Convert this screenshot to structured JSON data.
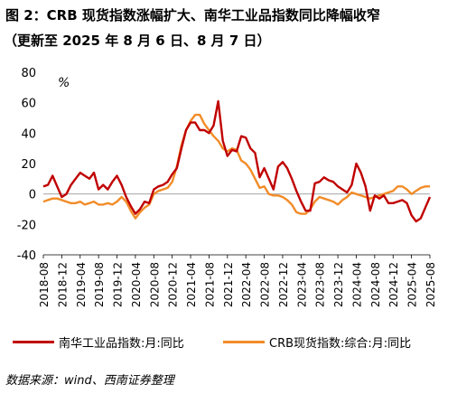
{
  "header": {
    "title": "图 2：CRB 现货指数涨幅扩大、南华工业品指数同比降幅收窄",
    "subtitle": "（更新至 2025 年 8 月 6 日、8 月 7 日）"
  },
  "footer": {
    "source": "数据来源：wind、西南证券整理"
  },
  "colors": {
    "nanhua": "#c00000",
    "crb": "#f28c28",
    "zero_line": "#999999"
  },
  "chart_data": {
    "type": "line",
    "unit_label": "%",
    "ylim": [
      -40,
      80
    ],
    "yticks": [
      80,
      60,
      40,
      20,
      0,
      -20,
      -40
    ],
    "xlim": [
      "2018-08",
      "2025-08"
    ],
    "xtick_labels": [
      "2018-08",
      "2018-12",
      "2019-04",
      "2019-08",
      "2019-12",
      "2020-04",
      "2020-08",
      "2020-12",
      "2021-04",
      "2021-08",
      "2021-12",
      "2022-04",
      "2022-08",
      "2022-12",
      "2023-04",
      "2023-08",
      "2023-12",
      "2024-04",
      "2024-08",
      "2024-12",
      "2025-04",
      "2025-08"
    ],
    "grid": false,
    "legend_position": "bottom",
    "series": [
      {
        "name": "南华工业品指数:月:同比",
        "color_key": "nanhua",
        "points": [
          [
            "2018-08",
            5
          ],
          [
            "2018-09",
            6
          ],
          [
            "2018-10",
            12
          ],
          [
            "2018-11",
            5
          ],
          [
            "2018-12",
            -2
          ],
          [
            "2019-01",
            0
          ],
          [
            "2019-02",
            6
          ],
          [
            "2019-03",
            10
          ],
          [
            "2019-04",
            14
          ],
          [
            "2019-05",
            12
          ],
          [
            "2019-06",
            10
          ],
          [
            "2019-07",
            14
          ],
          [
            "2019-08",
            3
          ],
          [
            "2019-09",
            6
          ],
          [
            "2019-10",
            3
          ],
          [
            "2019-11",
            8
          ],
          [
            "2019-12",
            12
          ],
          [
            "2020-01",
            6
          ],
          [
            "2020-02",
            -2
          ],
          [
            "2020-03",
            -8
          ],
          [
            "2020-04",
            -13
          ],
          [
            "2020-05",
            -10
          ],
          [
            "2020-06",
            -5
          ],
          [
            "2020-07",
            -6
          ],
          [
            "2020-08",
            3
          ],
          [
            "2020-09",
            5
          ],
          [
            "2020-10",
            6
          ],
          [
            "2020-11",
            8
          ],
          [
            "2020-12",
            13
          ],
          [
            "2021-01",
            17
          ],
          [
            "2021-02",
            30
          ],
          [
            "2021-03",
            42
          ],
          [
            "2021-04",
            47
          ],
          [
            "2021-05",
            47
          ],
          [
            "2021-06",
            42
          ],
          [
            "2021-07",
            42
          ],
          [
            "2021-08",
            40
          ],
          [
            "2021-09",
            45
          ],
          [
            "2021-10",
            61
          ],
          [
            "2021-11",
            35
          ],
          [
            "2021-12",
            25
          ],
          [
            "2022-01",
            29
          ],
          [
            "2022-02",
            28
          ],
          [
            "2022-03",
            38
          ],
          [
            "2022-04",
            37
          ],
          [
            "2022-05",
            30
          ],
          [
            "2022-06",
            27
          ],
          [
            "2022-07",
            11
          ],
          [
            "2022-08",
            17
          ],
          [
            "2022-09",
            10
          ],
          [
            "2022-10",
            3
          ],
          [
            "2022-11",
            18
          ],
          [
            "2022-12",
            21
          ],
          [
            "2023-01",
            17
          ],
          [
            "2023-02",
            10
          ],
          [
            "2023-03",
            2
          ],
          [
            "2023-04",
            -5
          ],
          [
            "2023-05",
            -11
          ],
          [
            "2023-06",
            -11
          ],
          [
            "2023-07",
            7
          ],
          [
            "2023-08",
            8
          ],
          [
            "2023-09",
            11
          ],
          [
            "2023-10",
            9
          ],
          [
            "2023-11",
            8
          ],
          [
            "2023-12",
            5
          ],
          [
            "2024-01",
            3
          ],
          [
            "2024-02",
            1
          ],
          [
            "2024-03",
            6
          ],
          [
            "2024-04",
            20
          ],
          [
            "2024-05",
            14
          ],
          [
            "2024-06",
            5
          ],
          [
            "2024-07",
            -11
          ],
          [
            "2024-08",
            -1
          ],
          [
            "2024-09",
            -3
          ],
          [
            "2024-10",
            -1
          ],
          [
            "2024-11",
            -6
          ],
          [
            "2024-12",
            -6
          ],
          [
            "2025-01",
            -5
          ],
          [
            "2025-02",
            -4
          ],
          [
            "2025-03",
            -6
          ],
          [
            "2025-04",
            -14
          ],
          [
            "2025-05",
            -18
          ],
          [
            "2025-06",
            -16
          ],
          [
            "2025-07",
            -9
          ],
          [
            "2025-08",
            -2
          ]
        ]
      },
      {
        "name": "CRB现货指数:综合:月:同比",
        "color_key": "crb",
        "points": [
          [
            "2018-08",
            -5
          ],
          [
            "2018-09",
            -4
          ],
          [
            "2018-10",
            -3
          ],
          [
            "2018-11",
            -3
          ],
          [
            "2018-12",
            -4
          ],
          [
            "2019-01",
            -5
          ],
          [
            "2019-02",
            -6
          ],
          [
            "2019-03",
            -6
          ],
          [
            "2019-04",
            -5
          ],
          [
            "2019-05",
            -7
          ],
          [
            "2019-06",
            -6
          ],
          [
            "2019-07",
            -5
          ],
          [
            "2019-08",
            -7
          ],
          [
            "2019-09",
            -7
          ],
          [
            "2019-10",
            -6
          ],
          [
            "2019-11",
            -7
          ],
          [
            "2019-12",
            -5
          ],
          [
            "2020-01",
            -2
          ],
          [
            "2020-02",
            -5
          ],
          [
            "2020-03",
            -11
          ],
          [
            "2020-04",
            -16
          ],
          [
            "2020-05",
            -12
          ],
          [
            "2020-06",
            -9
          ],
          [
            "2020-07",
            -7
          ],
          [
            "2020-08",
            0
          ],
          [
            "2020-09",
            2
          ],
          [
            "2020-10",
            3
          ],
          [
            "2020-11",
            4
          ],
          [
            "2020-12",
            8
          ],
          [
            "2021-01",
            18
          ],
          [
            "2021-02",
            32
          ],
          [
            "2021-03",
            42
          ],
          [
            "2021-04",
            48
          ],
          [
            "2021-05",
            52
          ],
          [
            "2021-06",
            52
          ],
          [
            "2021-07",
            46
          ],
          [
            "2021-08",
            42
          ],
          [
            "2021-09",
            38
          ],
          [
            "2021-10",
            35
          ],
          [
            "2021-11",
            30
          ],
          [
            "2021-12",
            28
          ],
          [
            "2022-01",
            30
          ],
          [
            "2022-02",
            29
          ],
          [
            "2022-03",
            22
          ],
          [
            "2022-04",
            20
          ],
          [
            "2022-05",
            16
          ],
          [
            "2022-06",
            10
          ],
          [
            "2022-07",
            4
          ],
          [
            "2022-08",
            5
          ],
          [
            "2022-09",
            0
          ],
          [
            "2022-10",
            -1
          ],
          [
            "2022-11",
            -1
          ],
          [
            "2022-12",
            -2
          ],
          [
            "2023-01",
            -4
          ],
          [
            "2023-02",
            -7
          ],
          [
            "2023-03",
            -12
          ],
          [
            "2023-04",
            -13
          ],
          [
            "2023-05",
            -13
          ],
          [
            "2023-06",
            -10
          ],
          [
            "2023-07",
            -5
          ],
          [
            "2023-08",
            -2
          ],
          [
            "2023-09",
            -3
          ],
          [
            "2023-10",
            -4
          ],
          [
            "2023-11",
            -5
          ],
          [
            "2023-12",
            -7
          ],
          [
            "2024-01",
            -4
          ],
          [
            "2024-02",
            -2
          ],
          [
            "2024-03",
            1
          ],
          [
            "2024-04",
            0
          ],
          [
            "2024-05",
            -1
          ],
          [
            "2024-06",
            -2
          ],
          [
            "2024-07",
            -3
          ],
          [
            "2024-08",
            -2
          ],
          [
            "2024-09",
            -1
          ],
          [
            "2024-10",
            0
          ],
          [
            "2024-11",
            1
          ],
          [
            "2024-12",
            2
          ],
          [
            "2025-01",
            5
          ],
          [
            "2025-02",
            5
          ],
          [
            "2025-03",
            3
          ],
          [
            "2025-04",
            0
          ],
          [
            "2025-05",
            2
          ],
          [
            "2025-06",
            4
          ],
          [
            "2025-07",
            5
          ],
          [
            "2025-08",
            5
          ]
        ]
      }
    ]
  }
}
